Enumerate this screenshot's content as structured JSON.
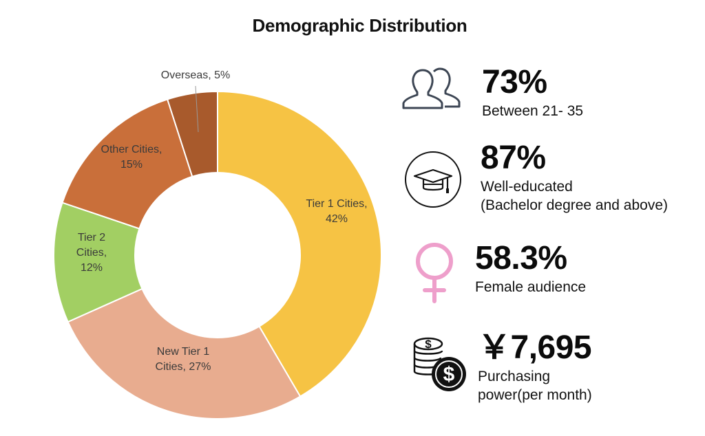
{
  "chart_data": {
    "type": "pie",
    "title": "Demographic Distribution",
    "slices": [
      {
        "label_lines": [
          "Tier 1 Cities,",
          "42%"
        ],
        "value": 42,
        "color": "#F6C344"
      },
      {
        "label_lines": [
          "New Tier 1",
          "Cities, 27%"
        ],
        "value": 27,
        "color": "#E8AC8F"
      },
      {
        "label_lines": [
          "Tier 2",
          "Cities,",
          "12%"
        ],
        "value": 12,
        "color": "#A2CF63"
      },
      {
        "label_lines": [
          "Other Cities,",
          "15%"
        ],
        "value": 15,
        "color": "#C96F3A"
      },
      {
        "label_lines": [
          "Overseas, 5%"
        ],
        "value": 5,
        "color": "#A85A2C"
      }
    ]
  },
  "stats": [
    {
      "icon": "people-icon",
      "value": "73%",
      "lines": [
        "Between 21- 35"
      ]
    },
    {
      "icon": "graduation-cap-icon",
      "value": "87%",
      "lines": [
        "Well-educated",
        "(Bachelor degree and above)"
      ]
    },
    {
      "icon": "female-symbol-icon",
      "value": "58.3%",
      "lines": [
        "Female audience"
      ]
    },
    {
      "icon": "money-coins-icon",
      "value": "￥7,695",
      "lines": [
        "Purchasing",
        "power(per month)"
      ]
    }
  ],
  "colors": {
    "icon_gray": "#3d4654",
    "female_pink": "#EE9FCB"
  }
}
